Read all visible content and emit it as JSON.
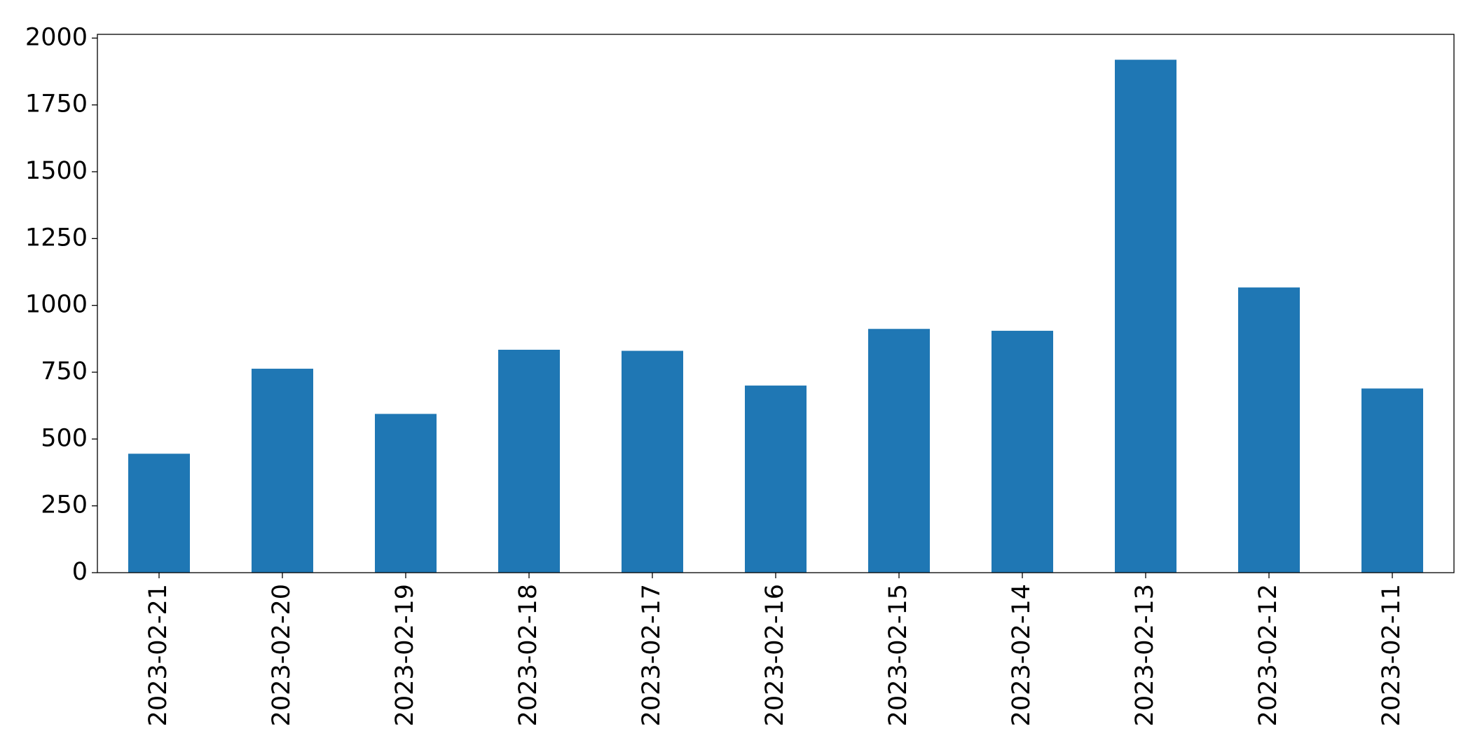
{
  "chart_data": {
    "type": "bar",
    "categories": [
      "2023-02-21",
      "2023-02-20",
      "2023-02-19",
      "2023-02-18",
      "2023-02-17",
      "2023-02-16",
      "2023-02-15",
      "2023-02-14",
      "2023-02-13",
      "2023-02-12",
      "2023-02-11"
    ],
    "values": [
      445,
      763,
      594,
      834,
      830,
      700,
      912,
      905,
      1919,
      1067,
      689
    ],
    "color": "#1f77b4",
    "ylim": [
      0,
      2014
    ],
    "yticks": [
      0,
      250,
      500,
      750,
      1000,
      1250,
      1500,
      1750,
      2000
    ],
    "grid": false
  }
}
